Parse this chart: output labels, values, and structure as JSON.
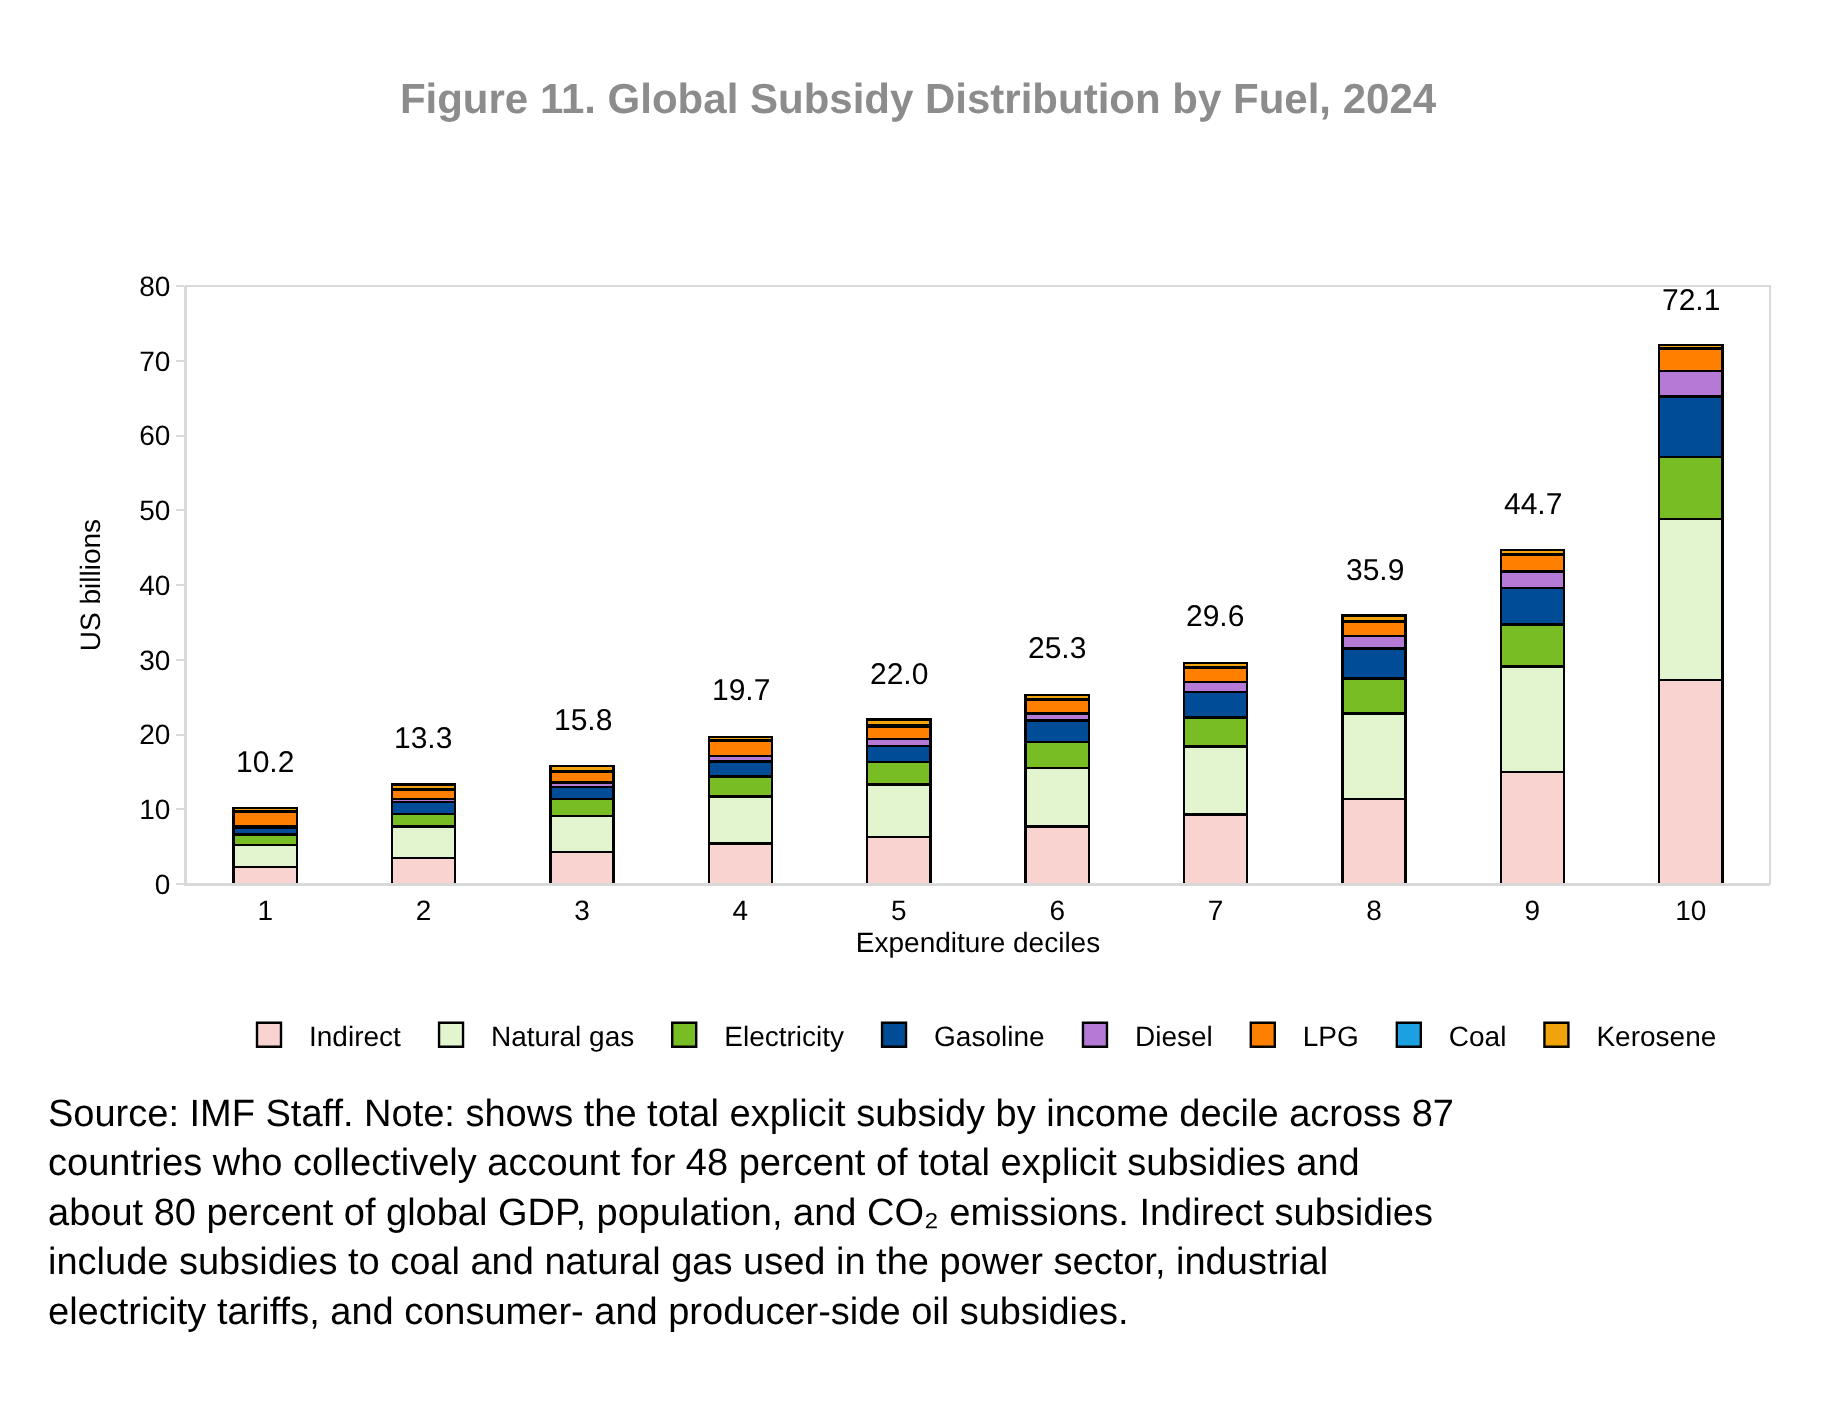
{
  "chart_data": {
    "type": "bar",
    "stacked": true,
    "title": "Figure 11. Global Subsidy Distribution by Fuel, 2024",
    "xlabel": "Expenditure deciles",
    "ylabel": "US billions",
    "categories": [
      "1",
      "2",
      "3",
      "4",
      "5",
      "6",
      "7",
      "8",
      "9",
      "10"
    ],
    "series": [
      {
        "name": "Indirect",
        "color": "#f8d3d0",
        "values": [
          2.3,
          3.5,
          4.3,
          5.4,
          6.3,
          7.7,
          9.3,
          11.4,
          15.0,
          27.3
        ]
      },
      {
        "name": "Natural gas",
        "color": "#e3f5cf",
        "values": [
          2.9,
          4.2,
          4.8,
          6.3,
          7.0,
          7.8,
          9.1,
          11.4,
          14.1,
          21.5
        ]
      },
      {
        "name": "Electricity",
        "color": "#78bd23",
        "values": [
          1.4,
          1.7,
          2.3,
          2.7,
          3.0,
          3.5,
          3.9,
          4.7,
          5.6,
          8.3
        ]
      },
      {
        "name": "Gasoline",
        "color": "#004c97",
        "values": [
          0.9,
          1.6,
          1.6,
          2.0,
          2.2,
          2.9,
          3.4,
          4.0,
          4.9,
          8.1
        ]
      },
      {
        "name": "Diesel",
        "color": "#b57ad6",
        "values": [
          0.2,
          0.4,
          0.6,
          0.7,
          0.9,
          0.9,
          1.3,
          1.7,
          2.2,
          3.4
        ]
      },
      {
        "name": "LPG",
        "color": "#ff7f00",
        "values": [
          1.9,
          1.2,
          1.4,
          2.0,
          1.6,
          1.8,
          1.9,
          1.9,
          2.2,
          3.0
        ]
      },
      {
        "name": "Coal",
        "color": "#1ba1e2",
        "values": [
          0.1,
          0.1,
          0.1,
          0.1,
          0.2,
          0.1,
          0.1,
          0.1,
          0.1,
          0.1
        ]
      },
      {
        "name": "Kerosene",
        "color": "#f0a30a",
        "values": [
          0.5,
          0.6,
          0.7,
          0.5,
          0.8,
          0.6,
          0.6,
          0.7,
          0.6,
          0.4
        ]
      }
    ],
    "totals": [
      "10.2",
      "13.3",
      "15.8",
      "19.7",
      "22.0",
      "25.3",
      "29.6",
      "35.9",
      "44.7",
      "72.1"
    ],
    "ylim": [
      0,
      80
    ],
    "yticks": [
      0,
      10,
      20,
      30,
      40,
      50,
      60,
      70,
      80
    ],
    "legend": "bottom",
    "annotations": [
      "Source: IMF Staff. Note: shows the total explicit subsidy by income decile across 87 countries who collectively account for 48 percent of total explicit subsidies and about 80 percent of global GDP, population, and CO₂ emissions. Indirect subsidies include subsidies to coal and natural gas used in the power sector, industrial electricity tariffs, and consumer- and producer-side oil subsidies."
    ]
  }
}
